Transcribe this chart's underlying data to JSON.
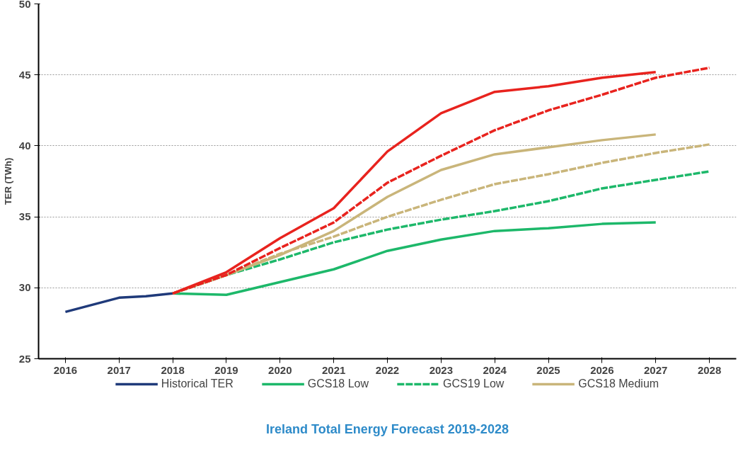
{
  "chart_data": {
    "type": "line",
    "ylabel": "TER (TWh)",
    "annotations": [
      "Ireland Total Energy Forecast 2019-2028"
    ],
    "xlim": [
      2015.5,
      2028.5
    ],
    "xticks": [
      2016,
      2017,
      2018,
      2019,
      2020,
      2021,
      2022,
      2023,
      2024,
      2025,
      2026,
      2027,
      2028
    ],
    "ylim": [
      25,
      50
    ],
    "yticks": [
      25,
      30,
      35,
      40,
      45,
      50
    ],
    "grid": "y",
    "legend": "bottom",
    "series": [
      {
        "name": "Historical TER",
        "color": "#1f3a7a",
        "line_style": "solid",
        "x": [
          2016,
          2016.5,
          2017,
          2017.5,
          2018
        ],
        "values": [
          28.3,
          28.8,
          29.3,
          29.4,
          29.6
        ]
      },
      {
        "name": "GCS18 Low",
        "color": "#1db86a",
        "line_style": "solid",
        "x": [
          2018,
          2019,
          2020,
          2021,
          2022,
          2023,
          2024,
          2025,
          2026,
          2027
        ],
        "values": [
          29.6,
          29.5,
          30.4,
          31.3,
          32.6,
          33.4,
          34.0,
          34.2,
          34.5,
          34.6
        ]
      },
      {
        "name": "GCS19 Low",
        "color": "#1db86a",
        "line_style": "dashed",
        "x": [
          2018,
          2019,
          2020,
          2021,
          2022,
          2023,
          2024,
          2025,
          2026,
          2027,
          2028
        ],
        "values": [
          29.6,
          30.9,
          32.0,
          33.2,
          34.1,
          34.8,
          35.4,
          36.1,
          37.0,
          37.6,
          38.2
        ]
      },
      {
        "name": "GCS18 Medium",
        "color": "#c9b57a",
        "line_style": "solid",
        "x": [
          2018,
          2019,
          2020,
          2021,
          2022,
          2023,
          2024,
          2025,
          2026,
          2027
        ],
        "values": [
          29.6,
          30.9,
          32.3,
          34.0,
          36.4,
          38.3,
          39.4,
          39.9,
          40.4,
          40.8
        ]
      },
      {
        "color": "#c9b57a",
        "line_style": "dashed",
        "x": [
          2018,
          2019,
          2020,
          2021,
          2022,
          2023,
          2024,
          2025,
          2026,
          2027,
          2028
        ],
        "values": [
          29.6,
          30.9,
          32.4,
          33.6,
          35.0,
          36.2,
          37.3,
          38.0,
          38.8,
          39.5,
          40.1
        ]
      },
      {
        "color": "#e8231e",
        "line_style": "solid",
        "x": [
          2018,
          2019,
          2020,
          2021,
          2022,
          2023,
          2024,
          2025,
          2026,
          2027
        ],
        "values": [
          29.6,
          31.1,
          33.5,
          35.6,
          39.6,
          42.3,
          43.8,
          44.2,
          44.8,
          45.2
        ]
      },
      {
        "color": "#e8231e",
        "line_style": "dashed",
        "x": [
          2018,
          2019,
          2020,
          2021,
          2022,
          2023,
          2024,
          2025,
          2026,
          2027,
          2028
        ],
        "values": [
          29.6,
          30.9,
          32.8,
          34.6,
          37.4,
          39.3,
          41.1,
          42.5,
          43.6,
          44.8,
          45.5
        ]
      }
    ]
  }
}
